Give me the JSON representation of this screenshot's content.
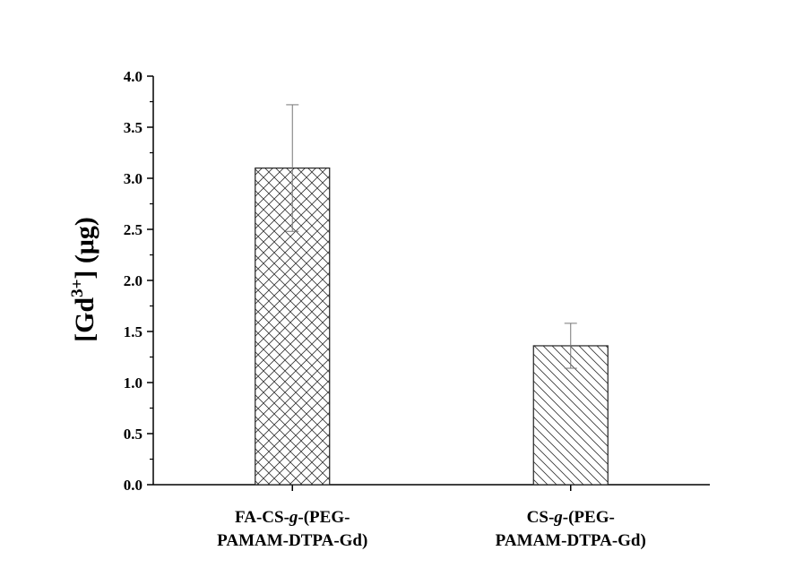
{
  "chart_data": {
    "type": "bar",
    "categories": [
      {
        "line1_a": "FA-CS-",
        "line1_b": "g",
        "line1_c": "-(PEG-",
        "line2": "PAMAM-DTPA-Gd)"
      },
      {
        "line1_a": "CS-",
        "line1_b": "g",
        "line1_c": "-(PEG-",
        "line2": "PAMAM-DTPA-Gd)"
      }
    ],
    "values": [
      3.1,
      1.36
    ],
    "errors": [
      0.62,
      0.22
    ],
    "patterns": [
      "crosshatch",
      "diagonal-hatch"
    ],
    "ylabel": {
      "open": "[Gd",
      "sup": "3+",
      "close": "] (μg)"
    },
    "xlabel": "",
    "title": "",
    "ylim": [
      0,
      4.0
    ],
    "yticks": [
      "0.0",
      "0.5",
      "1.0",
      "1.5",
      "2.0",
      "2.5",
      "3.0",
      "3.5",
      "4.0"
    ],
    "grid": false,
    "legend": "none"
  }
}
